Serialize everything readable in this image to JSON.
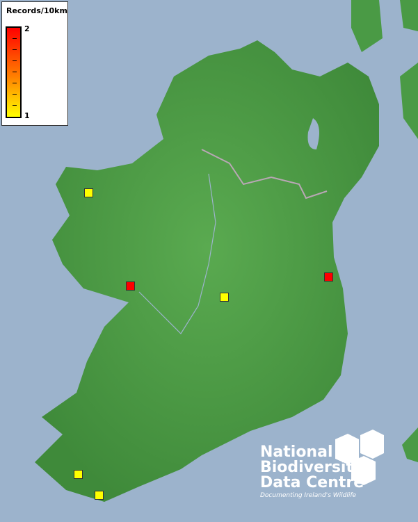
{
  "legend": {
    "title": "Records/10km",
    "max_label": "2",
    "min_label": "1",
    "color_max": "#ff0000",
    "color_min": "#ffff00"
  },
  "records": [
    {
      "value": 1,
      "color": "#ffff00"
    },
    {
      "value": 2,
      "color": "#ff0000"
    },
    {
      "value": 1,
      "color": "#ffff00"
    },
    {
      "value": 2,
      "color": "#ff0000"
    },
    {
      "value": 1,
      "color": "#ffff00"
    },
    {
      "value": 1,
      "color": "#ffff00"
    }
  ],
  "logo": {
    "line1": "National",
    "line2": "Biodiversity",
    "line3": "Data Centre",
    "tagline": "Documenting Ireland's Wildlife"
  },
  "colors": {
    "sea": "#9cb3cc",
    "land": "#4f9e48"
  }
}
